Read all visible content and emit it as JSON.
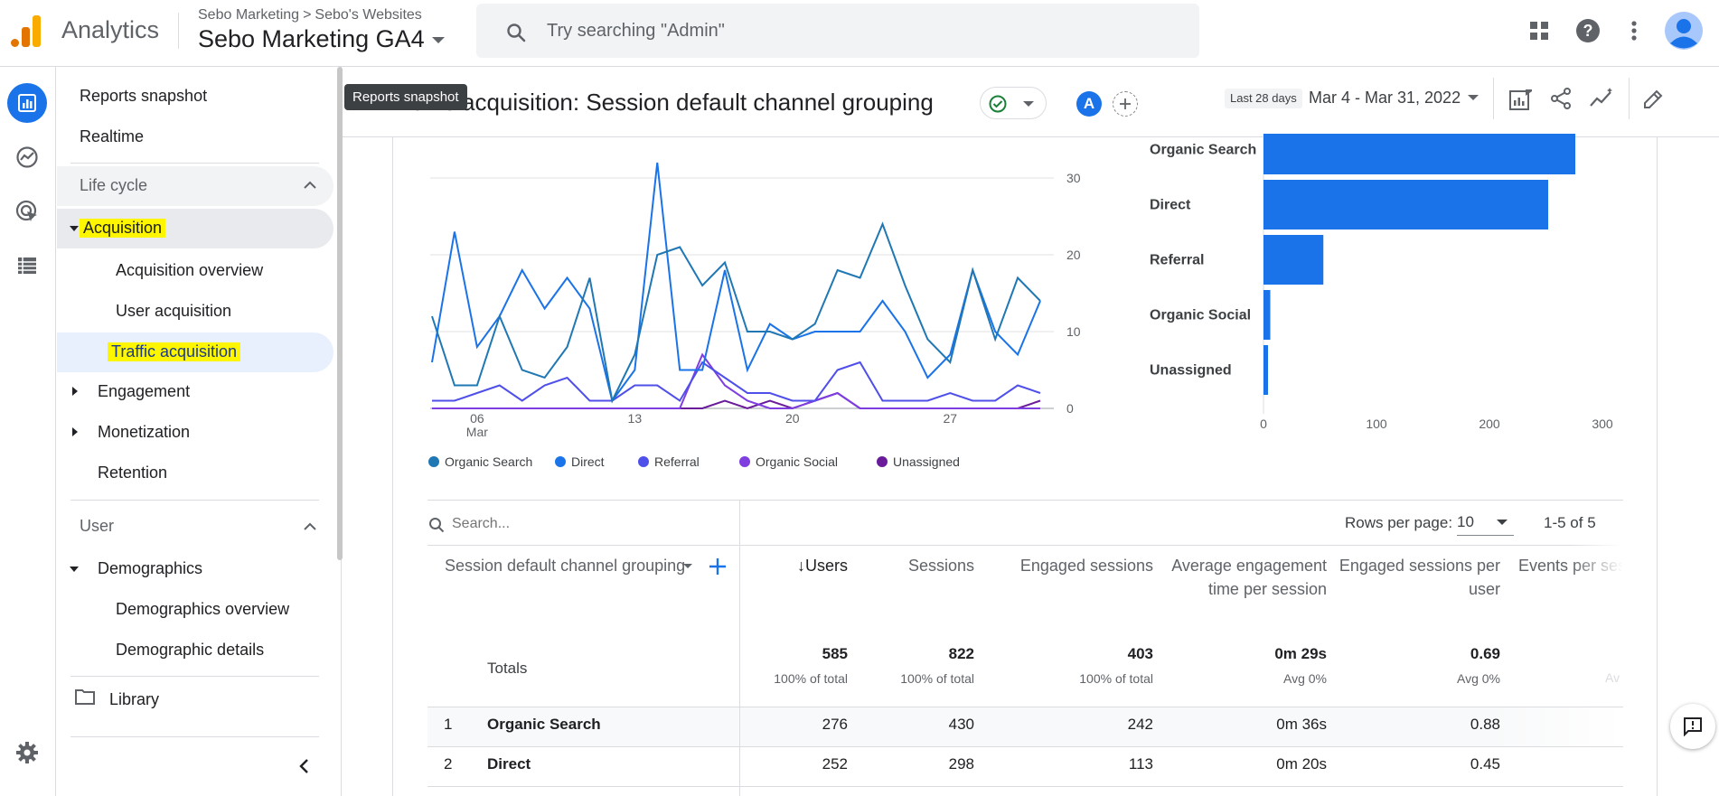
{
  "app": {
    "title": "Analytics",
    "breadcrumb": [
      "Sebo Marketing",
      "Sebo's Websites"
    ],
    "property": "Sebo Marketing GA4",
    "search_placeholder": "Try searching \"Admin\""
  },
  "nav": {
    "reports_snapshot": "Reports snapshot",
    "realtime": "Realtime",
    "lifecycle": "Life cycle",
    "acquisition": "Acquisition",
    "acquisition_overview": "Acquisition overview",
    "user_acquisition": "User acquisition",
    "traffic_acquisition": "Traffic acquisition",
    "engagement": "Engagement",
    "monetization": "Monetization",
    "retention": "Retention",
    "user": "User",
    "demographics": "Demographics",
    "demographics_overview": "Demographics overview",
    "demographic_details": "Demographic details",
    "library": "Library"
  },
  "tooltip": "Reports snapshot",
  "report": {
    "title": "Traffic acquisition: Session default channel grouping",
    "avatar": "A",
    "date_label": "Last 28 days",
    "date_range": "Mar 4 - Mar 31, 2022"
  },
  "colors": {
    "accent": "#1a73e8",
    "organic_search": "#1f77b4",
    "direct": "#1a73e8",
    "referral": "#4f4fea",
    "organic_social": "#7e3ee0",
    "unassigned": "#6a1b9a",
    "highlight": "#fdf600"
  },
  "chart_data": [
    {
      "type": "line",
      "x_ticks": [
        "06\nMar",
        "13",
        "20",
        "27"
      ],
      "y_ticks": [
        0,
        10,
        20,
        30
      ],
      "ylim": [
        0,
        32
      ],
      "series": [
        {
          "name": "Organic Search",
          "values": [
            12,
            3,
            3,
            12,
            5,
            4,
            8,
            17,
            1,
            7,
            20,
            21,
            16,
            19,
            10,
            10,
            9,
            11,
            18,
            17,
            24,
            16,
            9,
            6,
            18,
            9,
            17,
            14
          ]
        },
        {
          "name": "Direct",
          "values": [
            6,
            23,
            8,
            12,
            18,
            13,
            17,
            13,
            1,
            5,
            32,
            5,
            5,
            18,
            5,
            11,
            9,
            10,
            10,
            10,
            14,
            10,
            4,
            7,
            18,
            10,
            7,
            14
          ]
        },
        {
          "name": "Referral",
          "values": [
            1,
            1,
            2,
            3,
            1,
            3,
            4,
            1,
            1,
            3,
            3,
            1,
            6,
            4,
            2,
            2,
            1,
            1,
            5,
            6,
            1,
            1,
            1,
            2,
            1,
            1,
            3,
            2
          ]
        },
        {
          "name": "Organic Social",
          "values": [
            0,
            0,
            0,
            0,
            0,
            0,
            0,
            0,
            0,
            0,
            0,
            0,
            7,
            3,
            1,
            0,
            0,
            1,
            2,
            0,
            0,
            0,
            0,
            0,
            0,
            0,
            0,
            0
          ]
        },
        {
          "name": "Unassigned",
          "values": [
            0,
            0,
            0,
            0,
            0,
            0,
            0,
            0,
            0,
            0,
            0,
            0,
            0,
            1,
            0,
            1,
            0,
            1,
            2,
            0,
            0,
            0,
            0,
            0,
            0,
            0,
            0,
            1
          ]
        }
      ]
    },
    {
      "type": "bar",
      "orientation": "horizontal",
      "categories": [
        "Organic Search",
        "Direct",
        "Referral",
        "Organic Social",
        "Unassigned"
      ],
      "values": [
        276,
        252,
        53,
        6,
        4
      ],
      "x_ticks": [
        0,
        100,
        200,
        300
      ],
      "xlim": [
        0,
        300
      ]
    }
  ],
  "table": {
    "search_placeholder": "Search...",
    "rows_per_page_label": "Rows per page:",
    "rows_per_page": "10",
    "pagination": "1-5 of 5",
    "dimension_header": "Session default channel grouping",
    "columns": [
      {
        "label": "↓Users"
      },
      {
        "label": "Sessions"
      },
      {
        "label": "Engaged sessions"
      },
      {
        "label": "Average engagement time per session"
      },
      {
        "label": "Engaged sessions per user"
      },
      {
        "label": "Events per ses"
      }
    ],
    "totals_label": "Totals",
    "totals": [
      {
        "value": "585",
        "sub": "100% of total"
      },
      {
        "value": "822",
        "sub": "100% of total"
      },
      {
        "value": "403",
        "sub": "100% of total"
      },
      {
        "value": "0m 29s",
        "sub": "Avg 0%"
      },
      {
        "value": "0.69",
        "sub": "Avg 0%"
      },
      {
        "value": "",
        "sub": "Av"
      }
    ],
    "rows": [
      {
        "index": "1",
        "name": "Organic Search",
        "users": "276",
        "sessions": "430",
        "engaged": "242",
        "avg_time": "0m 36s",
        "per_user": "0.88"
      },
      {
        "index": "2",
        "name": "Direct",
        "users": "252",
        "sessions": "298",
        "engaged": "113",
        "avg_time": "0m 20s",
        "per_user": "0.45"
      }
    ]
  }
}
